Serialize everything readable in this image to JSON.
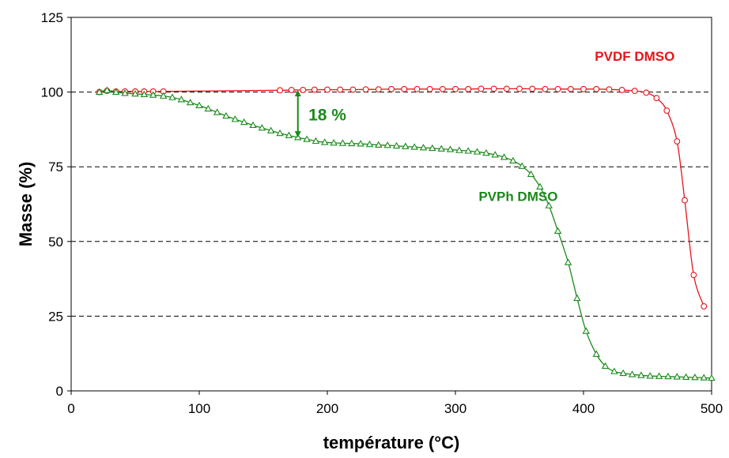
{
  "chart_data": {
    "type": "line",
    "title": "",
    "xlabel": "température (°C)",
    "ylabel": "Masse (%)",
    "xlim": [
      0,
      500
    ],
    "ylim": [
      0,
      125
    ],
    "x_ticks": [
      0,
      100,
      200,
      300,
      400,
      500
    ],
    "y_ticks": [
      0,
      25,
      50,
      75,
      100,
      125
    ],
    "grid": "horizontal dashed",
    "colors": {
      "PVDF DMSO": "#e8141b",
      "PVPh DMSO": "#1a8a1a"
    },
    "series": [
      {
        "name": "PVDF DMSO",
        "marker": "circle",
        "points": [
          [
            22,
            100.0
          ],
          [
            28,
            100.4
          ],
          [
            35,
            100.2
          ],
          [
            42,
            100.2
          ],
          [
            50,
            100.2
          ],
          [
            57,
            100.2
          ],
          [
            64,
            100.2
          ],
          [
            72,
            100.2
          ],
          [
            163,
            100.6
          ],
          [
            172,
            100.7
          ],
          [
            181,
            100.7
          ],
          [
            190,
            100.8
          ],
          [
            200,
            100.8
          ],
          [
            210,
            100.8
          ],
          [
            220,
            100.8
          ],
          [
            230,
            100.9
          ],
          [
            240,
            100.9
          ],
          [
            250,
            101.0
          ],
          [
            260,
            101.0
          ],
          [
            270,
            101.0
          ],
          [
            280,
            101.0
          ],
          [
            290,
            101.0
          ],
          [
            300,
            101.0
          ],
          [
            310,
            101.0
          ],
          [
            320,
            101.1
          ],
          [
            330,
            101.1
          ],
          [
            340,
            101.1
          ],
          [
            350,
            101.1
          ],
          [
            360,
            101.1
          ],
          [
            370,
            101.0
          ],
          [
            380,
            101.0
          ],
          [
            390,
            101.0
          ],
          [
            400,
            101.0
          ],
          [
            410,
            101.0
          ],
          [
            420,
            100.9
          ],
          [
            430,
            100.7
          ],
          [
            440,
            100.4
          ],
          [
            449,
            99.8
          ],
          [
            457,
            98.0
          ],
          [
            465,
            93.8
          ],
          [
            473,
            83.5
          ],
          [
            479,
            63.8
          ],
          [
            486,
            38.8
          ],
          [
            494,
            28.3
          ]
        ]
      },
      {
        "name": "PVPh DMSO",
        "marker": "triangle",
        "points": [
          [
            22,
            100.0
          ],
          [
            28,
            100.6
          ],
          [
            35,
            100.0
          ],
          [
            42,
            99.6
          ],
          [
            50,
            99.4
          ],
          [
            57,
            99.2
          ],
          [
            64,
            99.0
          ],
          [
            72,
            98.7
          ],
          [
            79,
            98.2
          ],
          [
            86,
            97.5
          ],
          [
            93,
            96.5
          ],
          [
            100,
            95.5
          ],
          [
            107,
            94.4
          ],
          [
            114,
            93.2
          ],
          [
            121,
            92.0
          ],
          [
            128,
            90.9
          ],
          [
            135,
            89.9
          ],
          [
            142,
            88.9
          ],
          [
            149,
            88.0
          ],
          [
            156,
            87.1
          ],
          [
            163,
            86.2
          ],
          [
            170,
            85.5
          ],
          [
            177,
            84.8
          ],
          [
            184,
            84.2
          ],
          [
            191,
            83.6
          ],
          [
            198,
            83.2
          ],
          [
            205,
            83.0
          ],
          [
            212,
            82.9
          ],
          [
            219,
            82.8
          ],
          [
            226,
            82.7
          ],
          [
            233,
            82.5
          ],
          [
            240,
            82.3
          ],
          [
            247,
            82.2
          ],
          [
            254,
            82.0
          ],
          [
            261,
            81.8
          ],
          [
            268,
            81.6
          ],
          [
            275,
            81.4
          ],
          [
            282,
            81.2
          ],
          [
            289,
            81.0
          ],
          [
            296,
            80.8
          ],
          [
            303,
            80.5
          ],
          [
            310,
            80.3
          ],
          [
            317,
            80.0
          ],
          [
            324,
            79.6
          ],
          [
            331,
            79.0
          ],
          [
            338,
            78.2
          ],
          [
            345,
            77.0
          ],
          [
            352,
            75.2
          ],
          [
            359,
            72.5
          ],
          [
            366,
            68.3
          ],
          [
            373,
            62.0
          ],
          [
            380,
            53.5
          ],
          [
            388,
            43.0
          ],
          [
            395,
            31.0
          ],
          [
            402,
            20.0
          ],
          [
            410,
            12.3
          ],
          [
            417,
            8.3
          ],
          [
            424,
            6.5
          ],
          [
            431,
            5.9
          ],
          [
            438,
            5.5
          ],
          [
            445,
            5.2
          ],
          [
            452,
            5.0
          ],
          [
            459,
            4.9
          ],
          [
            466,
            4.8
          ],
          [
            473,
            4.7
          ],
          [
            480,
            4.6
          ],
          [
            487,
            4.5
          ],
          [
            494,
            4.4
          ],
          [
            500,
            4.3
          ]
        ]
      }
    ],
    "annotations": [
      {
        "text": "PVDF DMSO",
        "x": 440,
        "y": 110.5,
        "color": "#e8141b"
      },
      {
        "text": "PVPh DMSO",
        "x": 349,
        "y": 63.5,
        "color": "#1a8a1a"
      },
      {
        "text": "18 %",
        "x": 200,
        "y": 90.5,
        "color": "#1a8a1a"
      }
    ],
    "arrow": {
      "x": 177,
      "y_from": 100.7,
      "y_to": 84.8,
      "color": "#1a8a1a"
    }
  }
}
